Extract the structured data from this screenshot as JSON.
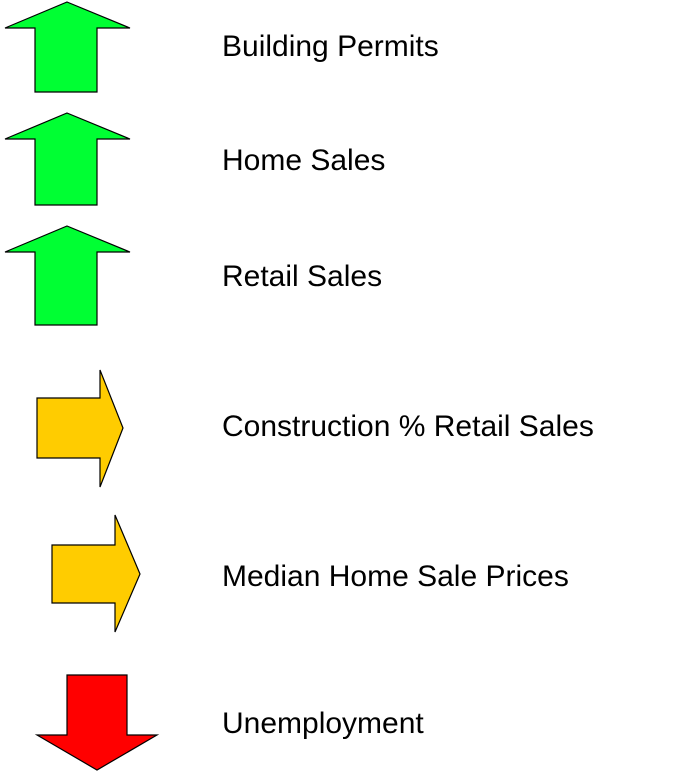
{
  "items": [
    {
      "label": "Building Permits"
    },
    {
      "label": "Home Sales"
    },
    {
      "label": "Retail Sales"
    },
    {
      "label": "Construction % Retail Sales"
    },
    {
      "label": "Median Home Sale Prices"
    },
    {
      "label": "Unemployment"
    }
  ]
}
